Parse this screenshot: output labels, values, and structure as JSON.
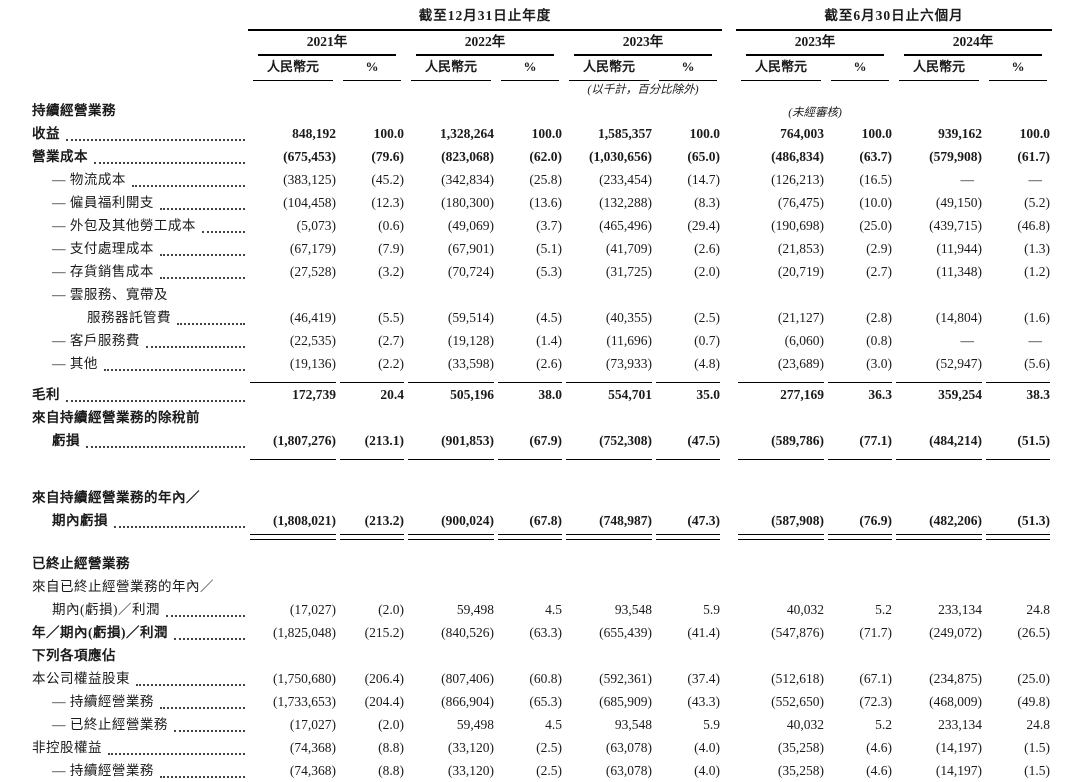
{
  "header": {
    "period_groups": [
      {
        "label": "截至12月31日止年度",
        "years": [
          "2021年",
          "2022年",
          "2023年"
        ]
      },
      {
        "label": "截至6月30日止六個月",
        "years": [
          "2023年",
          "2024年"
        ]
      }
    ],
    "currency_label": "人民幣元",
    "percent_label": "%",
    "units_note": "(以千計，百分比除外)",
    "unaudited_note": "(未經審核)"
  },
  "rows": [
    {
      "section": true,
      "label": "持續經營業務",
      "show_unaudited_note": true
    },
    {
      "label": "收益",
      "bold": true,
      "values": [
        "848,192",
        "100.0",
        "1,328,264",
        "100.0",
        "1,585,357",
        "100.0",
        "764,003",
        "100.0",
        "939,162",
        "100.0"
      ]
    },
    {
      "label": "營業成本",
      "bold": true,
      "values": [
        "(675,453)",
        "(79.6)",
        "(823,068)",
        "(62.0)",
        "(1,030,656)",
        "(65.0)",
        "(486,834)",
        "(63.7)",
        "(579,908)",
        "(61.7)"
      ]
    },
    {
      "label": "— 物流成本",
      "indent": 1,
      "values": [
        "(383,125)",
        "(45.2)",
        "(342,834)",
        "(25.8)",
        "(233,454)",
        "(14.7)",
        "(126,213)",
        "(16.5)",
        "—",
        "—"
      ]
    },
    {
      "label": "— 僱員福利開支",
      "indent": 1,
      "values": [
        "(104,458)",
        "(12.3)",
        "(180,300)",
        "(13.6)",
        "(132,288)",
        "(8.3)",
        "(76,475)",
        "(10.0)",
        "(49,150)",
        "(5.2)"
      ]
    },
    {
      "label": "— 外包及其他勞工成本",
      "indent": 1,
      "values": [
        "(5,073)",
        "(0.6)",
        "(49,069)",
        "(3.7)",
        "(465,496)",
        "(29.4)",
        "(190,698)",
        "(25.0)",
        "(439,715)",
        "(46.8)"
      ]
    },
    {
      "label": "— 支付處理成本",
      "indent": 1,
      "values": [
        "(67,179)",
        "(7.9)",
        "(67,901)",
        "(5.1)",
        "(41,709)",
        "(2.6)",
        "(21,853)",
        "(2.9)",
        "(11,944)",
        "(1.3)"
      ]
    },
    {
      "label": "— 存貨銷售成本",
      "indent": 1,
      "values": [
        "(27,528)",
        "(3.2)",
        "(70,724)",
        "(5.3)",
        "(31,725)",
        "(2.0)",
        "(20,719)",
        "(2.7)",
        "(11,348)",
        "(1.2)"
      ]
    },
    {
      "label": "— 雲服務、寬帶及",
      "label2": "服務器託管費",
      "indent": 1,
      "values": [
        "(46,419)",
        "(5.5)",
        "(59,514)",
        "(4.5)",
        "(40,355)",
        "(2.5)",
        "(21,127)",
        "(2.8)",
        "(14,804)",
        "(1.6)"
      ]
    },
    {
      "label": "— 客戶服務費",
      "indent": 1,
      "values": [
        "(22,535)",
        "(2.7)",
        "(19,128)",
        "(1.4)",
        "(11,696)",
        "(0.7)",
        "(6,060)",
        "(0.8)",
        "—",
        "—"
      ]
    },
    {
      "label": "— 其他",
      "indent": 1,
      "rule": "single",
      "values": [
        "(19,136)",
        "(2.2)",
        "(33,598)",
        "(2.6)",
        "(73,933)",
        "(4.8)",
        "(23,689)",
        "(3.0)",
        "(52,947)",
        "(5.6)"
      ]
    },
    {
      "label": "毛利",
      "bold": true,
      "values": [
        "172,739",
        "20.4",
        "505,196",
        "38.0",
        "554,701",
        "35.0",
        "277,169",
        "36.3",
        "359,254",
        "38.3"
      ]
    },
    {
      "label": "來自持續經營業務的除稅前",
      "label2": "虧損",
      "bold": true,
      "rule": "single",
      "values": [
        "(1,807,276)",
        "(213.1)",
        "(901,853)",
        "(67.9)",
        "(752,308)",
        "(47.5)",
        "(589,786)",
        "(77.1)",
        "(484,214)",
        "(51.5)"
      ]
    },
    {
      "gap": 26
    },
    {
      "label": "來自持續經營業務的年內／",
      "label2": "期內虧損",
      "bold": true,
      "rule": "double",
      "values": [
        "(1,808,021)",
        "(213.2)",
        "(900,024)",
        "(67.8)",
        "(748,987)",
        "(47.3)",
        "(587,908)",
        "(76.9)",
        "(482,206)",
        "(51.3)"
      ]
    },
    {
      "gap": 12
    },
    {
      "section": true,
      "label": "已終止經營業務"
    },
    {
      "label": "來自已終止經營業務的年內／",
      "label2": "期內(虧損)／利潤",
      "values": [
        "(17,027)",
        "(2.0)",
        "59,498",
        "4.5",
        "93,548",
        "5.9",
        "40,032",
        "5.2",
        "233,134",
        "24.8"
      ]
    },
    {
      "label": "年／期內(虧損)／利潤",
      "bold": true,
      "bold_values": false,
      "values": [
        "(1,825,048)",
        "(215.2)",
        "(840,526)",
        "(63.3)",
        "(655,439)",
        "(41.4)",
        "(547,876)",
        "(71.7)",
        "(249,072)",
        "(26.5)"
      ]
    },
    {
      "section": true,
      "label": "下列各項應佔"
    },
    {
      "label": "本公司權益股東",
      "values": [
        "(1,750,680)",
        "(206.4)",
        "(807,406)",
        "(60.8)",
        "(592,361)",
        "(37.4)",
        "(512,618)",
        "(67.1)",
        "(234,875)",
        "(25.0)"
      ]
    },
    {
      "label": "— 持續經營業務",
      "indent": 1,
      "values": [
        "(1,733,653)",
        "(204.4)",
        "(866,904)",
        "(65.3)",
        "(685,909)",
        "(43.3)",
        "(552,650)",
        "(72.3)",
        "(468,009)",
        "(49.8)"
      ]
    },
    {
      "label": "— 已終止經營業務",
      "indent": 1,
      "values": [
        "(17,027)",
        "(2.0)",
        "59,498",
        "4.5",
        "93,548",
        "5.9",
        "40,032",
        "5.2",
        "233,134",
        "24.8"
      ]
    },
    {
      "label": "非控股權益",
      "values": [
        "(74,368)",
        "(8.8)",
        "(33,120)",
        "(2.5)",
        "(63,078)",
        "(4.0)",
        "(35,258)",
        "(4.6)",
        "(14,197)",
        "(1.5)"
      ]
    },
    {
      "label": "— 持續經營業務",
      "indent": 1,
      "values": [
        "(74,368)",
        "(8.8)",
        "(33,120)",
        "(2.5)",
        "(63,078)",
        "(4.0)",
        "(35,258)",
        "(4.6)",
        "(14,197)",
        "(1.5)"
      ]
    }
  ]
}
